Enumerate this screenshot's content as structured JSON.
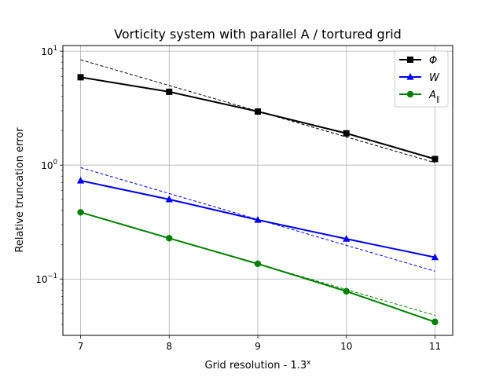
{
  "chart_data": {
    "type": "line",
    "title": "Vorticity system with parallel A / tortured grid",
    "xlabel": "Grid resolution - 1.3",
    "xlabel_superscript": "x",
    "ylabel": "Relative truncation error",
    "yscale": "log",
    "xlim": [
      6.8,
      11.2
    ],
    "ylim": [
      0.032,
      11.2
    ],
    "x_ticks": [
      7,
      8,
      9,
      10,
      11
    ],
    "x_tick_labels": [
      "7",
      "8",
      "9",
      "10",
      "11"
    ],
    "y_ticks": [
      0.1,
      1,
      10
    ],
    "y_tick_labels": [
      "10",
      "10",
      "10"
    ],
    "y_tick_exponents": [
      "−1",
      "0",
      "1"
    ],
    "grid": true,
    "legend_position": "top-right",
    "x": [
      7,
      8,
      9,
      10,
      11
    ],
    "series": [
      {
        "name": "Φ",
        "color": "#000000",
        "marker": "square",
        "values": [
          5.9,
          4.4,
          2.95,
          1.9,
          1.13
        ]
      },
      {
        "name": "W",
        "color": "#0000ff",
        "marker": "triangle",
        "values": [
          0.73,
          0.5,
          0.33,
          0.225,
          0.155
        ]
      },
      {
        "name": "A",
        "name_subscript": "∥",
        "color": "#008000",
        "marker": "circle",
        "values": [
          0.385,
          0.228,
          0.136,
          0.078,
          0.042
        ]
      }
    ],
    "reference_lines": [
      {
        "color": "#000000",
        "style": "dashed",
        "x": [
          7,
          11
        ],
        "values": [
          8.4,
          1.05
        ]
      },
      {
        "color": "#0000ff",
        "style": "dashed",
        "x": [
          7,
          11
        ],
        "values": [
          0.95,
          0.117
        ]
      },
      {
        "color": "#008000",
        "style": "dashed",
        "x": [
          7,
          11
        ],
        "values": [
          0.385,
          0.048
        ]
      }
    ]
  }
}
